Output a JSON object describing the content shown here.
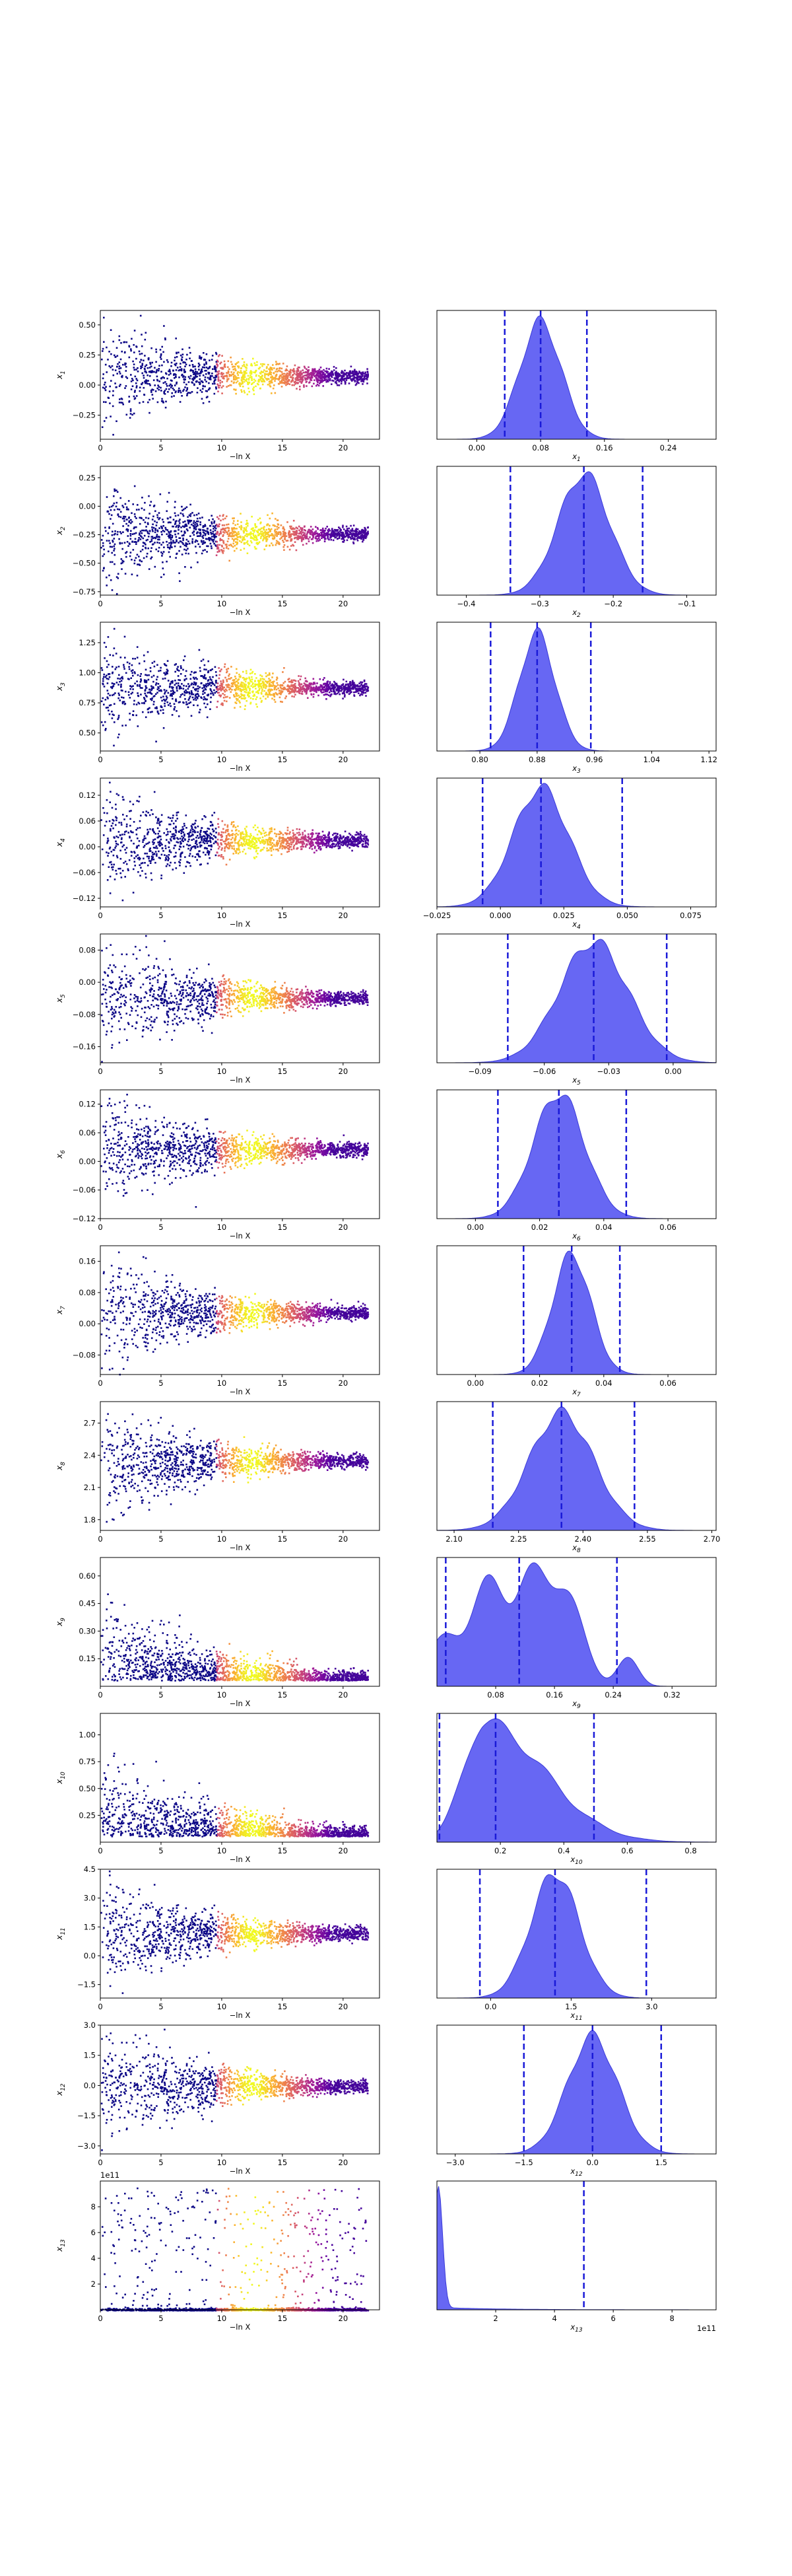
{
  "figure": {
    "xlabel_left": "−ln X",
    "left_xticks": [
      "0",
      "5",
      "10",
      "15",
      "20"
    ],
    "left_xlim": [
      0,
      23
    ]
  },
  "chart_data": [
    {
      "type": "scatter",
      "ylabel": "x",
      "sub": "1",
      "yticks": [
        "−0.25",
        "0.00",
        "0.25",
        "0.50"
      ],
      "ylim": [
        -0.45,
        0.62
      ],
      "kde_xticks": [
        "0.00",
        "0.08",
        "0.16",
        "0.24"
      ],
      "kde_xlim": [
        -0.05,
        0.3
      ],
      "kde_center": 0.08,
      "kde_width": 0.026,
      "kde_shape": "normal",
      "quantiles": [
        0.035,
        0.08,
        0.138
      ]
    },
    {
      "type": "scatter",
      "ylabel": "x",
      "sub": "2",
      "yticks": [
        "−0.75",
        "−0.50",
        "−0.25",
        "0.00",
        "0.25"
      ],
      "ylim": [
        -0.78,
        0.35
      ],
      "kde_xticks": [
        "−0.4",
        "−0.3",
        "−0.2",
        "−0.1"
      ],
      "kde_xlim": [
        -0.44,
        -0.06
      ],
      "kde_center": -0.24,
      "kde_width": 0.035,
      "kde_shape": "normal",
      "quantiles": [
        -0.34,
        -0.24,
        -0.16
      ]
    },
    {
      "type": "scatter",
      "ylabel": "x",
      "sub": "3",
      "yticks": [
        "0.50",
        "0.75",
        "1.00",
        "1.25"
      ],
      "ylim": [
        0.35,
        1.42
      ],
      "kde_xticks": [
        "0.80",
        "0.88",
        "0.96",
        "1.04",
        "1.12"
      ],
      "kde_xlim": [
        0.74,
        1.13
      ],
      "kde_center": 0.88,
      "kde_width": 0.025,
      "kde_shape": "normal",
      "quantiles": [
        0.815,
        0.88,
        0.955
      ]
    },
    {
      "type": "scatter",
      "ylabel": "x",
      "sub": "4",
      "yticks": [
        "−0.12",
        "−0.06",
        "0.00",
        "0.06",
        "0.12"
      ],
      "ylim": [
        -0.14,
        0.16
      ],
      "kde_xticks": [
        "−0.025",
        "0.000",
        "0.025",
        "0.050",
        "0.075"
      ],
      "kde_xlim": [
        -0.025,
        0.085
      ],
      "kde_center": 0.016,
      "kde_width": 0.011,
      "kde_shape": "normal",
      "quantiles": [
        -0.007,
        0.016,
        0.048
      ]
    },
    {
      "type": "scatter",
      "ylabel": "x",
      "sub": "5",
      "yticks": [
        "−0.16",
        "−0.08",
        "0.00",
        "0.08"
      ],
      "ylim": [
        -0.2,
        0.12
      ],
      "kde_xticks": [
        "−0.09",
        "−0.06",
        "−0.03",
        "0.00"
      ],
      "kde_xlim": [
        -0.11,
        0.02
      ],
      "kde_center": -0.037,
      "kde_width": 0.016,
      "kde_shape": "normal",
      "quantiles": [
        -0.077,
        -0.037,
        -0.003
      ]
    },
    {
      "type": "scatter",
      "ylabel": "x",
      "sub": "6",
      "yticks": [
        "−0.12",
        "−0.06",
        "0.00",
        "0.06",
        "0.12"
      ],
      "ylim": [
        -0.12,
        0.15
      ],
      "kde_xticks": [
        "0.00",
        "0.02",
        "0.04",
        "0.06"
      ],
      "kde_xlim": [
        -0.012,
        0.075
      ],
      "kde_center": 0.026,
      "kde_width": 0.008,
      "kde_shape": "normal",
      "quantiles": [
        0.007,
        0.026,
        0.047
      ]
    },
    {
      "type": "scatter",
      "ylabel": "x",
      "sub": "7",
      "yticks": [
        "−0.08",
        "0.00",
        "0.08",
        "0.16"
      ],
      "ylim": [
        -0.13,
        0.2
      ],
      "kde_xticks": [
        "0.00",
        "0.02",
        "0.04",
        "0.06"
      ],
      "kde_xlim": [
        -0.012,
        0.075
      ],
      "kde_center": 0.03,
      "kde_width": 0.006,
      "kde_shape": "normal",
      "quantiles": [
        0.015,
        0.03,
        0.045
      ]
    },
    {
      "type": "scatter",
      "ylabel": "x",
      "sub": "8",
      "yticks": [
        "1.8",
        "2.1",
        "2.4",
        "2.7"
      ],
      "ylim": [
        1.7,
        2.9
      ],
      "kde_xticks": [
        "2.10",
        "2.25",
        "2.40",
        "2.55",
        "2.70"
      ],
      "kde_xlim": [
        2.06,
        2.71
      ],
      "kde_center": 2.35,
      "kde_width": 0.075,
      "kde_shape": "normal",
      "quantiles": [
        2.19,
        2.35,
        2.52
      ]
    },
    {
      "type": "scatter",
      "ylabel": "x",
      "sub": "9",
      "yticks": [
        "0.15",
        "0.30",
        "0.45",
        "0.60"
      ],
      "ylim": [
        0.0,
        0.7
      ],
      "kde_xticks": [
        "0.08",
        "0.16",
        "0.24",
        "0.32"
      ],
      "kde_xlim": [
        0.0,
        0.38
      ],
      "kde_center": 0.12,
      "kde_width": 0.06,
      "kde_shape": "multi",
      "quantiles": [
        0.012,
        0.112,
        0.245
      ]
    },
    {
      "type": "scatter",
      "ylabel": "x",
      "sub": "10",
      "yticks": [
        "0.25",
        "0.50",
        "0.75",
        "1.00"
      ],
      "ylim": [
        0.0,
        1.2
      ],
      "kde_xticks": [
        "0.2",
        "0.4",
        "0.6",
        "0.8"
      ],
      "kde_xlim": [
        0.0,
        0.88
      ],
      "kde_center": 0.15,
      "kde_width": 0.12,
      "kde_shape": "skew",
      "quantiles": [
        0.008,
        0.185,
        0.495
      ]
    },
    {
      "type": "scatter",
      "ylabel": "x",
      "sub": "11",
      "yticks": [
        "−1.5",
        "0.0",
        "1.5",
        "3.0",
        "4.5"
      ],
      "ylim": [
        -2.2,
        4.5
      ],
      "kde_xticks": [
        "0.0",
        "1.5",
        "3.0"
      ],
      "kde_xlim": [
        -1.0,
        4.2
      ],
      "kde_center": 1.2,
      "kde_width": 0.45,
      "kde_shape": "normal",
      "quantiles": [
        -0.2,
        1.2,
        2.9
      ]
    },
    {
      "type": "scatter",
      "ylabel": "x",
      "sub": "12",
      "yticks": [
        "−3.0",
        "−1.5",
        "0.0",
        "1.5",
        "3.0"
      ],
      "ylim": [
        -3.4,
        3.0
      ],
      "kde_xticks": [
        "−3.0",
        "−1.5",
        "0.0",
        "1.5"
      ],
      "kde_xlim": [
        -3.4,
        2.7
      ],
      "kde_center": 0.0,
      "kde_width": 0.55,
      "kde_shape": "normal",
      "quantiles": [
        -1.5,
        0.0,
        1.5
      ]
    },
    {
      "type": "scatter",
      "ylabel": "x",
      "sub": "13",
      "yticks": [
        "2",
        "4",
        "6",
        "8"
      ],
      "ylim": [
        0.0,
        10.0
      ],
      "y_offset_text": "1e11",
      "kde_xticks": [
        "2",
        "4",
        "6",
        "8"
      ],
      "kde_xlim": [
        0.0,
        9.5
      ],
      "kde_offset_text": "1e11",
      "kde_center": 0.05,
      "kde_width": 0.2,
      "kde_shape": "spike",
      "quantiles": [
        5.0
      ]
    }
  ],
  "colors": {
    "kde_fill": "#4646f0",
    "kde_edge": "#3a3ad8",
    "quantile_line": "#1a1ad8",
    "axis": "#000000",
    "cmap": [
      "#0d0887",
      "#5b02a3",
      "#9a179b",
      "#cb4678",
      "#eb7852",
      "#fbb32f",
      "#f0f921"
    ]
  }
}
